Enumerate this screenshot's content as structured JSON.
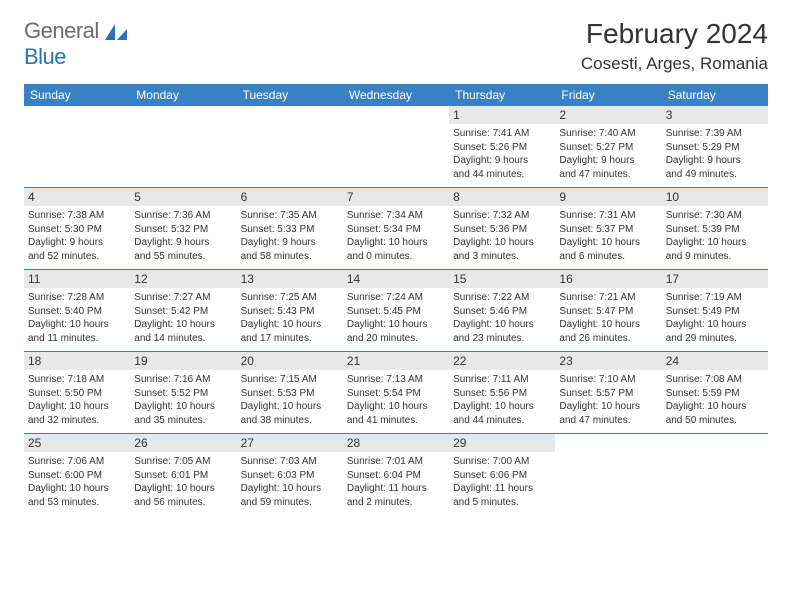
{
  "brand": {
    "part1": "General",
    "part2": "Blue"
  },
  "header": {
    "month_title": "February 2024",
    "location": "Cosesti, Arges, Romania"
  },
  "columns": [
    "Sunday",
    "Monday",
    "Tuesday",
    "Wednesday",
    "Thursday",
    "Friday",
    "Saturday"
  ],
  "colors": {
    "header_bg": "#3a81c4",
    "header_text": "#ffffff",
    "rule": "#3a81c4",
    "daynum_bg": "#e8e8e8",
    "text": "#333333",
    "brand_gray": "#6b6b6b",
    "brand_blue": "#2a72b5"
  },
  "weeks": [
    [
      null,
      null,
      null,
      null,
      {
        "n": "1",
        "sr": "Sunrise: 7:41 AM",
        "ss": "Sunset: 5:26 PM",
        "d1": "Daylight: 9 hours",
        "d2": "and 44 minutes."
      },
      {
        "n": "2",
        "sr": "Sunrise: 7:40 AM",
        "ss": "Sunset: 5:27 PM",
        "d1": "Daylight: 9 hours",
        "d2": "and 47 minutes."
      },
      {
        "n": "3",
        "sr": "Sunrise: 7:39 AM",
        "ss": "Sunset: 5:29 PM",
        "d1": "Daylight: 9 hours",
        "d2": "and 49 minutes."
      }
    ],
    [
      {
        "n": "4",
        "sr": "Sunrise: 7:38 AM",
        "ss": "Sunset: 5:30 PM",
        "d1": "Daylight: 9 hours",
        "d2": "and 52 minutes."
      },
      {
        "n": "5",
        "sr": "Sunrise: 7:36 AM",
        "ss": "Sunset: 5:32 PM",
        "d1": "Daylight: 9 hours",
        "d2": "and 55 minutes."
      },
      {
        "n": "6",
        "sr": "Sunrise: 7:35 AM",
        "ss": "Sunset: 5:33 PM",
        "d1": "Daylight: 9 hours",
        "d2": "and 58 minutes."
      },
      {
        "n": "7",
        "sr": "Sunrise: 7:34 AM",
        "ss": "Sunset: 5:34 PM",
        "d1": "Daylight: 10 hours",
        "d2": "and 0 minutes."
      },
      {
        "n": "8",
        "sr": "Sunrise: 7:32 AM",
        "ss": "Sunset: 5:36 PM",
        "d1": "Daylight: 10 hours",
        "d2": "and 3 minutes."
      },
      {
        "n": "9",
        "sr": "Sunrise: 7:31 AM",
        "ss": "Sunset: 5:37 PM",
        "d1": "Daylight: 10 hours",
        "d2": "and 6 minutes."
      },
      {
        "n": "10",
        "sr": "Sunrise: 7:30 AM",
        "ss": "Sunset: 5:39 PM",
        "d1": "Daylight: 10 hours",
        "d2": "and 9 minutes."
      }
    ],
    [
      {
        "n": "11",
        "sr": "Sunrise: 7:28 AM",
        "ss": "Sunset: 5:40 PM",
        "d1": "Daylight: 10 hours",
        "d2": "and 11 minutes."
      },
      {
        "n": "12",
        "sr": "Sunrise: 7:27 AM",
        "ss": "Sunset: 5:42 PM",
        "d1": "Daylight: 10 hours",
        "d2": "and 14 minutes."
      },
      {
        "n": "13",
        "sr": "Sunrise: 7:25 AM",
        "ss": "Sunset: 5:43 PM",
        "d1": "Daylight: 10 hours",
        "d2": "and 17 minutes."
      },
      {
        "n": "14",
        "sr": "Sunrise: 7:24 AM",
        "ss": "Sunset: 5:45 PM",
        "d1": "Daylight: 10 hours",
        "d2": "and 20 minutes."
      },
      {
        "n": "15",
        "sr": "Sunrise: 7:22 AM",
        "ss": "Sunset: 5:46 PM",
        "d1": "Daylight: 10 hours",
        "d2": "and 23 minutes."
      },
      {
        "n": "16",
        "sr": "Sunrise: 7:21 AM",
        "ss": "Sunset: 5:47 PM",
        "d1": "Daylight: 10 hours",
        "d2": "and 26 minutes."
      },
      {
        "n": "17",
        "sr": "Sunrise: 7:19 AM",
        "ss": "Sunset: 5:49 PM",
        "d1": "Daylight: 10 hours",
        "d2": "and 29 minutes."
      }
    ],
    [
      {
        "n": "18",
        "sr": "Sunrise: 7:18 AM",
        "ss": "Sunset: 5:50 PM",
        "d1": "Daylight: 10 hours",
        "d2": "and 32 minutes."
      },
      {
        "n": "19",
        "sr": "Sunrise: 7:16 AM",
        "ss": "Sunset: 5:52 PM",
        "d1": "Daylight: 10 hours",
        "d2": "and 35 minutes."
      },
      {
        "n": "20",
        "sr": "Sunrise: 7:15 AM",
        "ss": "Sunset: 5:53 PM",
        "d1": "Daylight: 10 hours",
        "d2": "and 38 minutes."
      },
      {
        "n": "21",
        "sr": "Sunrise: 7:13 AM",
        "ss": "Sunset: 5:54 PM",
        "d1": "Daylight: 10 hours",
        "d2": "and 41 minutes."
      },
      {
        "n": "22",
        "sr": "Sunrise: 7:11 AM",
        "ss": "Sunset: 5:56 PM",
        "d1": "Daylight: 10 hours",
        "d2": "and 44 minutes."
      },
      {
        "n": "23",
        "sr": "Sunrise: 7:10 AM",
        "ss": "Sunset: 5:57 PM",
        "d1": "Daylight: 10 hours",
        "d2": "and 47 minutes."
      },
      {
        "n": "24",
        "sr": "Sunrise: 7:08 AM",
        "ss": "Sunset: 5:59 PM",
        "d1": "Daylight: 10 hours",
        "d2": "and 50 minutes."
      }
    ],
    [
      {
        "n": "25",
        "sr": "Sunrise: 7:06 AM",
        "ss": "Sunset: 6:00 PM",
        "d1": "Daylight: 10 hours",
        "d2": "and 53 minutes."
      },
      {
        "n": "26",
        "sr": "Sunrise: 7:05 AM",
        "ss": "Sunset: 6:01 PM",
        "d1": "Daylight: 10 hours",
        "d2": "and 56 minutes."
      },
      {
        "n": "27",
        "sr": "Sunrise: 7:03 AM",
        "ss": "Sunset: 6:03 PM",
        "d1": "Daylight: 10 hours",
        "d2": "and 59 minutes."
      },
      {
        "n": "28",
        "sr": "Sunrise: 7:01 AM",
        "ss": "Sunset: 6:04 PM",
        "d1": "Daylight: 11 hours",
        "d2": "and 2 minutes."
      },
      {
        "n": "29",
        "sr": "Sunrise: 7:00 AM",
        "ss": "Sunset: 6:06 PM",
        "d1": "Daylight: 11 hours",
        "d2": "and 5 minutes."
      },
      null,
      null
    ]
  ]
}
